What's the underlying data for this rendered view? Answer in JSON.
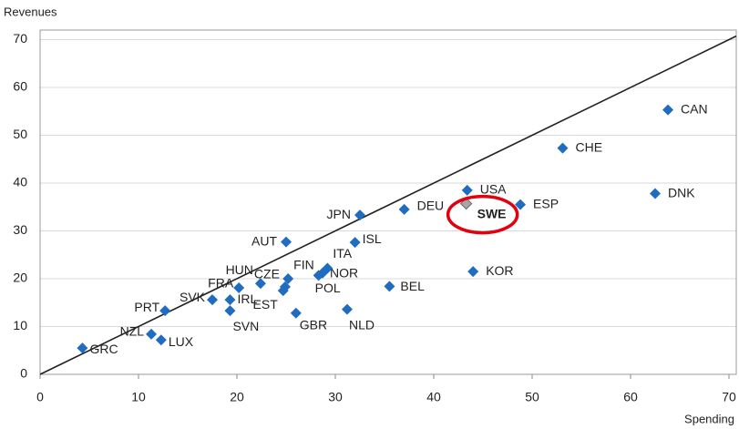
{
  "chart_data": {
    "type": "scatter",
    "xlabel": "Spending",
    "ylabel": "Revenues",
    "xlim": [
      0,
      70
    ],
    "ylim": [
      0,
      72
    ],
    "xticks": [
      0,
      10,
      20,
      30,
      40,
      50,
      60,
      70
    ],
    "yticks": [
      0,
      10,
      20,
      30,
      40,
      50,
      60,
      70
    ],
    "grid": true,
    "color": "#1f6cc0",
    "highlight_color": "#a6a6a6",
    "points": [
      {
        "label": "GRC",
        "x": 4.3,
        "y": 5.5
      },
      {
        "label": "NZL",
        "x": 11.3,
        "y": 8.4
      },
      {
        "label": "LUX",
        "x": 12.3,
        "y": 7.2
      },
      {
        "label": "PRT",
        "x": 12.7,
        "y": 13.3
      },
      {
        "label": "SVK",
        "x": 17.5,
        "y": 15.6
      },
      {
        "label": "SVN",
        "x": 19.3,
        "y": 13.3
      },
      {
        "label": "IRL",
        "x": 19.3,
        "y": 15.6
      },
      {
        "label": "FRA",
        "x": 20.2,
        "y": 18.1
      },
      {
        "label": "HUN",
        "x": 22.4,
        "y": 19.0
      },
      {
        "label": "CZE",
        "x": 24.9,
        "y": 18.3
      },
      {
        "label": "EST",
        "x": 24.7,
        "y": 17.5
      },
      {
        "label": "FIN",
        "x": 25.2,
        "y": 20.0
      },
      {
        "label": "AUT",
        "x": 25.0,
        "y": 27.7
      },
      {
        "label": "GBR",
        "x": 26.0,
        "y": 12.8
      },
      {
        "label": "POL",
        "x": 28.3,
        "y": 20.7
      },
      {
        "label": "NOR",
        "x": 28.7,
        "y": 21.2
      },
      {
        "label": "ITA",
        "x": 29.2,
        "y": 22.2
      },
      {
        "label": "NLD",
        "x": 31.2,
        "y": 13.6
      },
      {
        "label": "ISL",
        "x": 32.0,
        "y": 27.6
      },
      {
        "label": "JPN",
        "x": 32.5,
        "y": 33.3
      },
      {
        "label": "BEL",
        "x": 35.5,
        "y": 18.4
      },
      {
        "label": "DEU",
        "x": 37.0,
        "y": 34.5
      },
      {
        "label": "SWE",
        "x": 43.3,
        "y": 35.7,
        "highlight": true
      },
      {
        "label": "USA",
        "x": 43.4,
        "y": 38.5
      },
      {
        "label": "KOR",
        "x": 44.0,
        "y": 21.5
      },
      {
        "label": "ESP",
        "x": 48.8,
        "y": 35.5
      },
      {
        "label": "CHE",
        "x": 53.1,
        "y": 47.3
      },
      {
        "label": "DNK",
        "x": 62.5,
        "y": 37.8
      },
      {
        "label": "CAN",
        "x": 63.8,
        "y": 55.3
      }
    ]
  }
}
